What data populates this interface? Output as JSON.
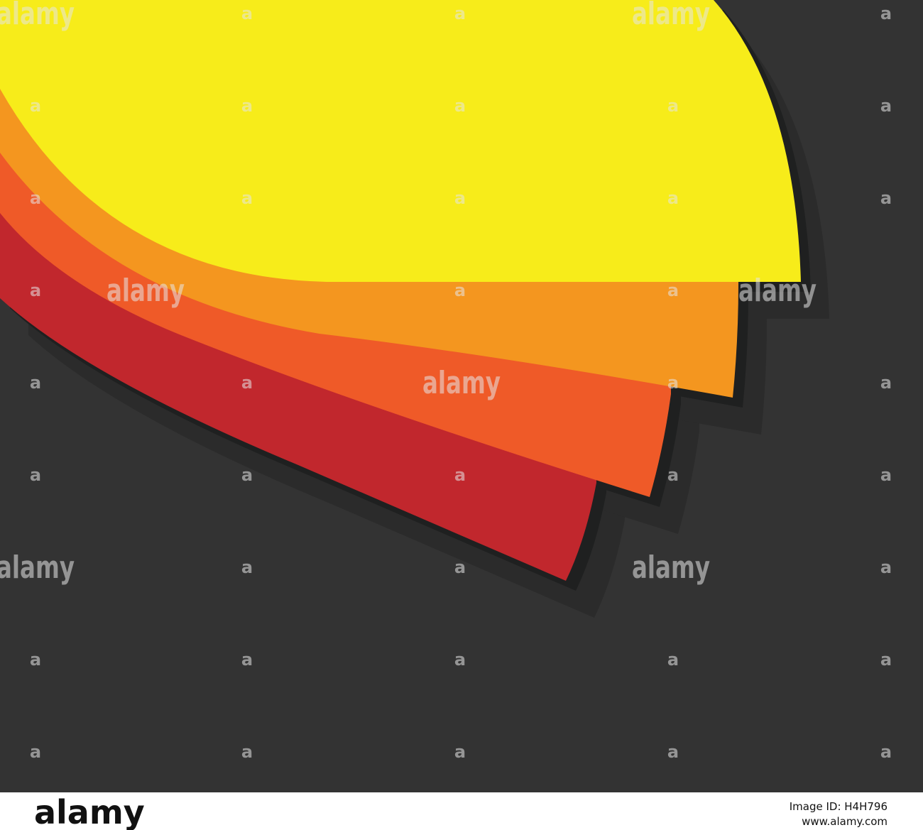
{
  "watermark": {
    "mark": "a",
    "word": "alamy"
  },
  "footer": {
    "logo": "alamy",
    "image_id": "Image ID: H4H796",
    "url": "www.alamy.com"
  }
}
